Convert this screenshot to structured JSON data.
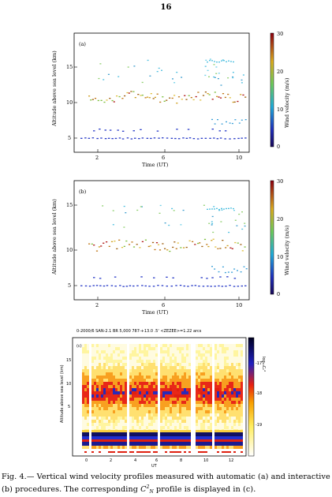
{
  "page_number": "16",
  "panels": [
    {
      "id": "a",
      "label": "(a)",
      "ylabel": "Altitude above sea level (km)",
      "xlabel": "Time (UT)",
      "yticks": [
        "5",
        "10",
        "15"
      ],
      "xticks": [
        "2",
        "6",
        "10"
      ],
      "colorbar_label": "Wind velocity (m/s)",
      "colorbar_ticks": [
        "0",
        "10",
        "20",
        "30"
      ]
    },
    {
      "id": "b",
      "label": "(b)",
      "ylabel": "Altitude above sea level (km)",
      "xlabel": "Time (UT)",
      "yticks": [
        "5",
        "10",
        "15"
      ],
      "xticks": [
        "2",
        "6",
        "10"
      ],
      "colorbar_label": "Wind velocity (m/s)",
      "colorbar_ticks": [
        "0",
        "10",
        "20",
        "30"
      ]
    },
    {
      "id": "c",
      "label": "(c)",
      "header": "0-2000/6          SAN-2.1     BR 5,000   787-+13.0 .5'    <ZEZEE>=1.22 arcs",
      "ylabel": "Altitude above sea level (km)",
      "xlabel": "UT",
      "yticks": [
        "5",
        "10",
        "15"
      ],
      "xticks": [
        "0",
        "2",
        "4",
        "6",
        "8",
        "10",
        "12"
      ],
      "colorbar_label": "log₁₀Cₙ²",
      "colorbar_ticks": [
        "-17",
        "-18",
        "-19"
      ]
    }
  ],
  "caption": {
    "label": "Fig. 4.—",
    "text_before": "Vertical wind velocity profiles measured with automatic (a) and interactive (b) procedures. The corresponding ",
    "symbol_base": "C",
    "symbol_sub": "N",
    "symbol_sup": "2",
    "text_after": " profile is displayed in (c)."
  }
}
